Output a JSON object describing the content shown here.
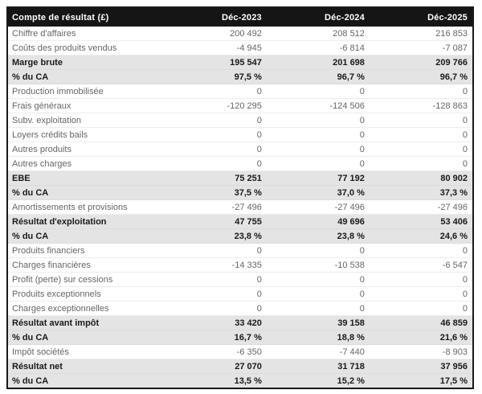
{
  "table": {
    "title": "Compte de résultat (£)",
    "header": {
      "label": "Compte de résultat (£)",
      "columns": [
        "Déc-2023",
        "Déc-2024",
        "Déc-2025"
      ]
    },
    "rows": [
      {
        "label": "Chiffre d'affaires",
        "values": [
          "200 492",
          "208 512",
          "216 853"
        ],
        "emphasis": false
      },
      {
        "label": "Coûts des produits vendus",
        "values": [
          "-4 945",
          "-6 814",
          "-7 087"
        ],
        "emphasis": false
      },
      {
        "label": "Marge brute",
        "values": [
          "195 547",
          "201 698",
          "209 766"
        ],
        "emphasis": true
      },
      {
        "label": "% du CA",
        "values": [
          "97,5 %",
          "96,7 %",
          "96,7 %"
        ],
        "emphasis": true
      },
      {
        "label": "Production immobilisée",
        "values": [
          "0",
          "0",
          "0"
        ],
        "emphasis": false
      },
      {
        "label": "Frais généraux",
        "values": [
          "-120 295",
          "-124 506",
          "-128 863"
        ],
        "emphasis": false
      },
      {
        "label": "Subv. exploitation",
        "values": [
          "0",
          "0",
          "0"
        ],
        "emphasis": false
      },
      {
        "label": "Loyers crédits bails",
        "values": [
          "0",
          "0",
          "0"
        ],
        "emphasis": false
      },
      {
        "label": "Autres produits",
        "values": [
          "0",
          "0",
          "0"
        ],
        "emphasis": false
      },
      {
        "label": "Autres charges",
        "values": [
          "0",
          "0",
          "0"
        ],
        "emphasis": false
      },
      {
        "label": "EBE",
        "values": [
          "75 251",
          "77 192",
          "80 902"
        ],
        "emphasis": true
      },
      {
        "label": "% du CA",
        "values": [
          "37,5 %",
          "37,0 %",
          "37,3 %"
        ],
        "emphasis": true
      },
      {
        "label": "Amortissements et provisions",
        "values": [
          "-27 496",
          "-27 496",
          "-27 496"
        ],
        "emphasis": false
      },
      {
        "label": "Résultat d'exploitation",
        "values": [
          "47 755",
          "49 696",
          "53 406"
        ],
        "emphasis": true
      },
      {
        "label": "% du CA",
        "values": [
          "23,8 %",
          "23,8 %",
          "24,6 %"
        ],
        "emphasis": true
      },
      {
        "label": "Produits financiers",
        "values": [
          "0",
          "0",
          "0"
        ],
        "emphasis": false
      },
      {
        "label": "Charges financières",
        "values": [
          "-14 335",
          "-10 538",
          "-6 547"
        ],
        "emphasis": false
      },
      {
        "label": "Profit (perte) sur cessions",
        "values": [
          "0",
          "0",
          "0"
        ],
        "emphasis": false
      },
      {
        "label": "Produits exceptionnels",
        "values": [
          "0",
          "0",
          "0"
        ],
        "emphasis": false
      },
      {
        "label": "Charges exceptionnelles",
        "values": [
          "0",
          "0",
          "0"
        ],
        "emphasis": false
      },
      {
        "label": "Résultat avant impôt",
        "values": [
          "33 420",
          "39 158",
          "46 859"
        ],
        "emphasis": true
      },
      {
        "label": "% du CA",
        "values": [
          "16,7 %",
          "18,8 %",
          "21,6 %"
        ],
        "emphasis": true
      },
      {
        "label": "Impôt sociétés",
        "values": [
          "-6 350",
          "-7 440",
          "-8 903"
        ],
        "emphasis": false
      },
      {
        "label": "Résultat net",
        "values": [
          "27 070",
          "31 718",
          "37 956"
        ],
        "emphasis": true
      },
      {
        "label": "% du CA",
        "values": [
          "13,5 %",
          "15,2 %",
          "17,5 %"
        ],
        "emphasis": true
      }
    ]
  },
  "colors": {
    "header_bg": "#151515",
    "header_text": "#ffffff",
    "row_text": "#666666",
    "emphasis_bg": "#e4e4e4",
    "emphasis_text": "#1a1a1a",
    "outer_border": "#191919",
    "row_separator": "#ededed"
  }
}
